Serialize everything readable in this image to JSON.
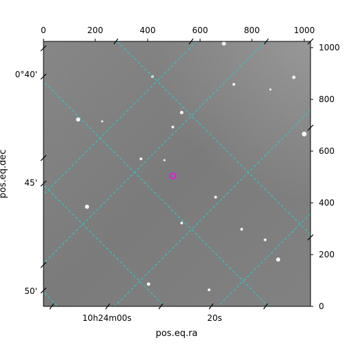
{
  "figure": {
    "xlabel": "pos.eq.ra",
    "ylabel": "pos.eq.dec",
    "colors": {
      "grid": "#22d3d3",
      "marker": "#ff00ff",
      "sky": "#777777"
    }
  },
  "chart_data": {
    "type": "image",
    "pixel_axes": {
      "x_range": [
        0,
        1024
      ],
      "y_range": [
        0,
        1024
      ],
      "top_ticks": [
        "0",
        "200",
        "400",
        "600",
        "800",
        "1000"
      ],
      "right_ticks": [
        "0",
        "200",
        "400",
        "600",
        "800",
        "1000"
      ]
    },
    "world_axes": {
      "ra_tick_labels": [
        "10h24m00s",
        "20s"
      ],
      "dec_tick_labels": [
        "0°40'",
        "45'",
        "50'"
      ]
    },
    "grid": true,
    "stars": [
      {
        "x": 692,
        "y": 1016,
        "m": 3
      },
      {
        "x": 418,
        "y": 888,
        "m": 2
      },
      {
        "x": 530,
        "y": 749,
        "m": 2.5
      },
      {
        "x": 133,
        "y": 722,
        "m": 3
      },
      {
        "x": 1000,
        "y": 666,
        "m": 3.5
      },
      {
        "x": 496,
        "y": 693,
        "m": 2
      },
      {
        "x": 374,
        "y": 570,
        "m": 2
      },
      {
        "x": 464,
        "y": 565,
        "m": 1.5
      },
      {
        "x": 167,
        "y": 385,
        "m": 3
      },
      {
        "x": 660,
        "y": 422,
        "m": 2
      },
      {
        "x": 530,
        "y": 322,
        "m": 2
      },
      {
        "x": 760,
        "y": 298,
        "m": 2
      },
      {
        "x": 850,
        "y": 257,
        "m": 2
      },
      {
        "x": 900,
        "y": 181,
        "m": 3
      },
      {
        "x": 403,
        "y": 86,
        "m": 2.5
      },
      {
        "x": 635,
        "y": 64,
        "m": 2
      },
      {
        "x": 960,
        "y": 885,
        "m": 2.5
      },
      {
        "x": 730,
        "y": 858,
        "m": 2
      },
      {
        "x": 225,
        "y": 715,
        "m": 1.5
      },
      {
        "x": 870,
        "y": 838,
        "m": 1.5
      }
    ],
    "marker": {
      "x": 496,
      "y": 504
    }
  }
}
